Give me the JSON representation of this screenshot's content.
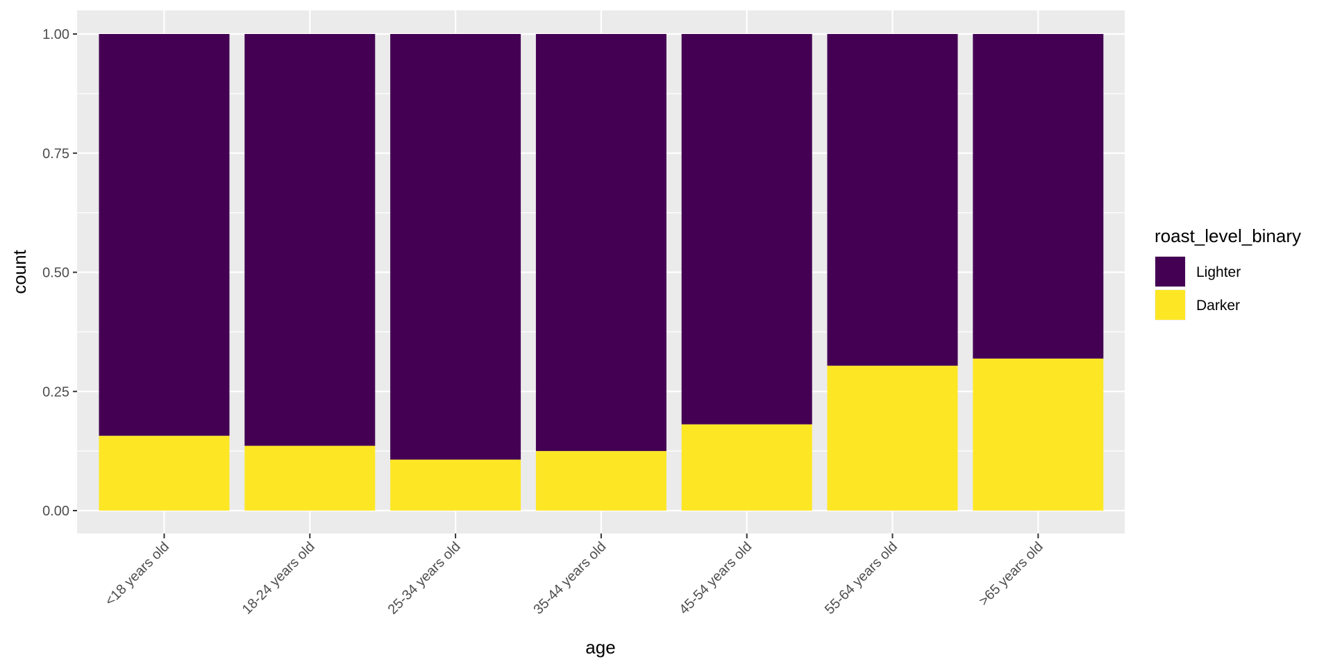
{
  "chart_data": {
    "type": "bar",
    "stacked": true,
    "xlabel": "age",
    "ylabel": "count",
    "ylim": [
      0,
      1
    ],
    "yticks": [
      "0.00",
      "0.25",
      "0.50",
      "0.75",
      "1.00"
    ],
    "ytick_values": [
      0,
      0.25,
      0.5,
      0.75,
      1
    ],
    "categories": [
      "<18 years old",
      "18-24 years old",
      "25-34 years old",
      "35-44 years old",
      "45-54 years old",
      "55-64 years old",
      ">65 years old"
    ],
    "series": [
      {
        "name": "Darker",
        "color": "#FDE725",
        "values": [
          0.157,
          0.136,
          0.107,
          0.125,
          0.181,
          0.304,
          0.319
        ]
      },
      {
        "name": "Lighter",
        "color": "#440154",
        "values": [
          0.843,
          0.864,
          0.893,
          0.875,
          0.819,
          0.696,
          0.681
        ]
      }
    ],
    "grid": true,
    "panel_background": "#EBEBEB",
    "legend": {
      "title": "roast_level_binary",
      "position": "right",
      "entries": [
        {
          "label": "Lighter",
          "color": "#440154"
        },
        {
          "label": "Darker",
          "color": "#FDE725"
        }
      ]
    }
  }
}
